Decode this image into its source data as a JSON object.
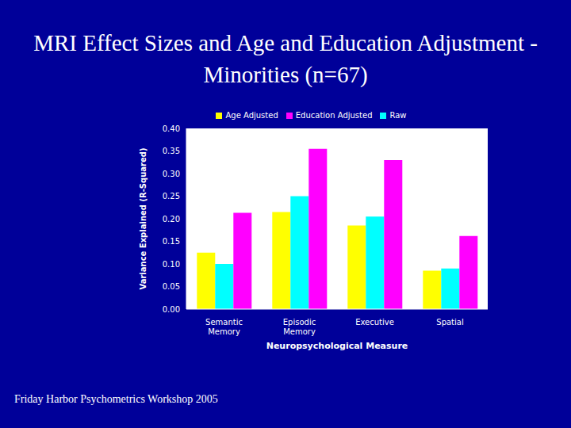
{
  "chart_data": {
    "type": "bar",
    "title": "MRI Effect Sizes and Age and Education Adjustment - Minorities (n=67)",
    "footer": "Friday Harbor Psychometrics Workshop 2005",
    "xlabel": "Neuropsychological Measure",
    "ylabel": "Variance Explained (R-Squared)",
    "categories": [
      "Semantic Memory",
      "Episodic Memory",
      "Executive",
      "Spatial"
    ],
    "series": [
      {
        "name": "Age Adjusted",
        "color": "#ffff00",
        "values": [
          0.125,
          0.215,
          0.185,
          0.085
        ]
      },
      {
        "name": "Raw",
        "color": "#00ffff",
        "values": [
          0.1,
          0.25,
          0.205,
          0.09
        ]
      },
      {
        "name": "Education Adjusted",
        "color": "#ff00ff",
        "values": [
          0.213,
          0.355,
          0.33,
          0.162
        ]
      }
    ],
    "ylim": [
      0,
      0.4
    ],
    "yticks": [
      {
        "value": 0,
        "label": "0.00"
      },
      {
        "value": 0.05,
        "label": "0.05"
      },
      {
        "value": 0.1,
        "label": "0.10"
      },
      {
        "value": 0.15,
        "label": "0.15"
      },
      {
        "value": 0.2,
        "label": "0.20"
      },
      {
        "value": 0.25,
        "label": "0.25"
      },
      {
        "value": 0.3,
        "label": "0.30"
      },
      {
        "value": 0.35,
        "label": "0.35"
      },
      {
        "value": 0.4,
        "label": "0.40"
      }
    ],
    "grid": false,
    "legend": "top"
  }
}
